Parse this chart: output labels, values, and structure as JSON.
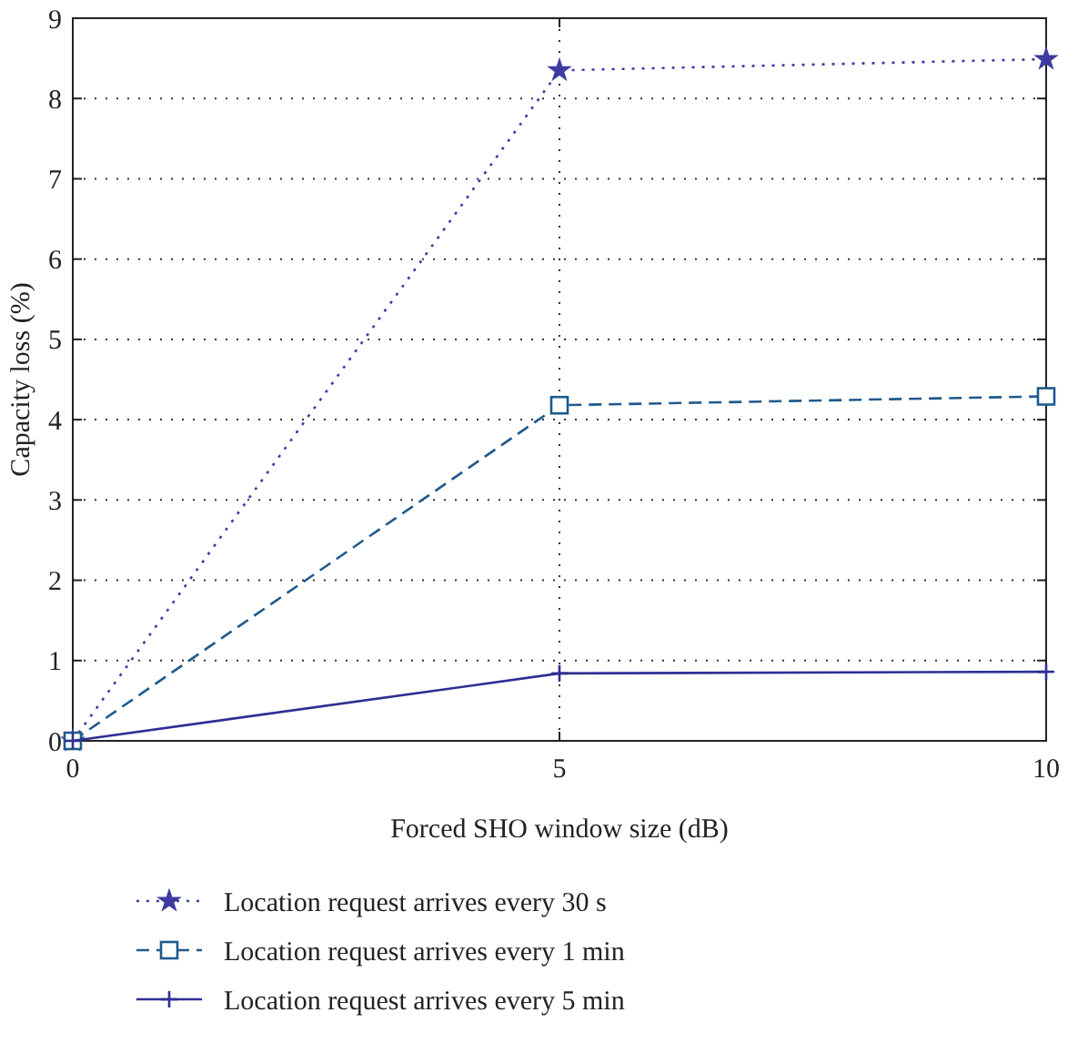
{
  "chart_data": {
    "type": "line",
    "xlabel": "Forced SHO window size (dB)",
    "ylabel": "Capacity loss (%)",
    "x": [
      0,
      5,
      10
    ],
    "series": [
      {
        "name": "Location request arrives every 30 s",
        "color": "#3c3ca0",
        "values": [
          0,
          8.35,
          8.49
        ],
        "marker": "star",
        "line_style": "dotted"
      },
      {
        "name": "Location request arrives every 1 min",
        "color": "#1f5a8c",
        "values": [
          0,
          4.18,
          4.29
        ],
        "marker": "square",
        "line_style": "dashed"
      },
      {
        "name": "Location request arrives every 5 min",
        "color": "#2e2e94",
        "values": [
          0,
          0.84,
          0.86
        ],
        "marker": "cross",
        "line_style": "solid"
      }
    ],
    "xlim": [
      0,
      10
    ],
    "xticks": [
      0,
      5,
      10
    ],
    "ylim": [
      0,
      9
    ],
    "yticks": [
      0,
      1,
      2,
      3,
      4,
      5,
      6,
      7,
      8,
      9
    ],
    "grid": true,
    "legend": "bottom"
  }
}
